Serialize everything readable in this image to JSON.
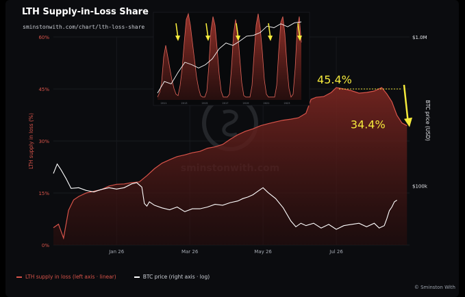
{
  "header": {
    "title": "LTH Supply-in-Loss Share",
    "subtitle": "sminstonwith.com/chart/lth-loss-share"
  },
  "legend": {
    "lth_label": "LTH supply in loss (left axis · linear)",
    "btc_label": "BTC price (right axis · log)"
  },
  "copyright": "© Sminston With",
  "watermark": "sminstonwith.com",
  "colors": {
    "background": "#0b0c0f",
    "lth_line": "#d9544a",
    "lth_fill": "#6e1f1c",
    "btc_line": "#ffffff",
    "highlight": "#f5ea3c",
    "left_axis_text": "#d9544a"
  },
  "chart_data": [
    {
      "type": "area",
      "title": "LTH Supply-in-Loss Share",
      "ylabel": "LTH supply in loss (%)",
      "y2label": "BTC price (USD)",
      "y2scale": "log",
      "ylim": [
        0,
        60
      ],
      "y2lim": [
        40000,
        1000000
      ],
      "yticks": [
        "0%",
        "15%",
        "30%",
        "45%",
        "60%"
      ],
      "y2ticks": [
        "$100k",
        "$1.0M"
      ],
      "y2tick_values": [
        100000,
        1000000
      ],
      "xticks": [
        "Jan 26",
        "Mar 26",
        "May 26",
        "Jul 26"
      ],
      "xtick_days": [
        50,
        108,
        166,
        224
      ],
      "x_range_days": [
        0,
        282
      ],
      "grid": true,
      "legend_position": "bottom-left",
      "annotations": [
        {
          "text": "45.4%",
          "day": 224,
          "value": 45.4
        },
        {
          "text": "34.4%",
          "day": 270,
          "value": 34.4
        }
      ],
      "series": [
        {
          "name": "LTH supply in loss (left axis · linear)",
          "axis": "left",
          "x": [
            0,
            4,
            8,
            12,
            16,
            20,
            26,
            32,
            38,
            44,
            50,
            56,
            62,
            68,
            74,
            80,
            86,
            92,
            98,
            104,
            110,
            116,
            122,
            128,
            134,
            140,
            146,
            152,
            158,
            164,
            170,
            176,
            182,
            188,
            194,
            200,
            204,
            208,
            214,
            220,
            224,
            230,
            236,
            242,
            248,
            254,
            260,
            264,
            268,
            272,
            276,
            280
          ],
          "values": [
            5,
            6,
            2,
            10,
            13,
            14,
            15,
            15.5,
            16,
            17,
            17.5,
            17.6,
            18,
            18.2,
            20,
            22,
            23.6,
            24.6,
            25.5,
            26,
            26.6,
            27,
            27.9,
            28.3,
            29,
            30.5,
            31.8,
            32.8,
            33.5,
            34.4,
            35,
            35.5,
            36,
            36.3,
            36.7,
            38,
            42,
            42.6,
            42.8,
            44,
            45.4,
            45.0,
            44.5,
            43.8,
            44.0,
            44.4,
            45.4,
            43.6,
            41.3,
            37.4,
            35.2,
            34.4
          ]
        },
        {
          "name": "BTC price (right axis · log)",
          "axis": "right",
          "x": [
            0,
            3,
            6,
            10,
            14,
            20,
            26,
            32,
            38,
            44,
            50,
            56,
            62,
            66,
            70,
            72,
            74,
            76,
            80,
            86,
            92,
            98,
            104,
            110,
            116,
            122,
            128,
            134,
            140,
            146,
            150,
            154,
            158,
            162,
            166,
            170,
            176,
            182,
            188,
            192,
            196,
            200,
            206,
            212,
            218,
            224,
            230,
            236,
            242,
            248,
            254,
            258,
            262,
            264,
            266,
            268,
            270,
            272
          ],
          "values": [
            121000,
            140000,
            128000,
            112000,
            96000,
            97000,
            93000,
            91000,
            94500,
            97000,
            95000,
            97000,
            103000,
            105000,
            98000,
            76000,
            73000,
            78000,
            74000,
            71000,
            69000,
            72000,
            67000,
            70000,
            70000,
            72000,
            75000,
            74000,
            77000,
            79000,
            82000,
            84000,
            87000,
            92000,
            97000,
            90000,
            82000,
            71000,
            58000,
            53000,
            56000,
            54000,
            56000,
            52000,
            55000,
            51000,
            54000,
            55000,
            56000,
            53000,
            56000,
            52000,
            54000,
            60000,
            68000,
            72000,
            78000,
            80000
          ]
        }
      ]
    },
    {
      "type": "area",
      "title": "",
      "xticks": [
        "2011",
        "2013",
        "2015",
        "2017",
        "2019",
        "2021",
        "2023"
      ],
      "series": [
        {
          "name": "LTH supply in loss",
          "x": [
            0,
            3,
            6,
            9,
            12,
            15,
            18,
            21,
            24,
            27,
            30,
            33,
            36,
            39,
            42,
            45,
            48,
            51,
            54,
            57,
            60,
            63,
            66,
            69,
            72,
            75,
            78,
            81,
            84,
            87,
            90,
            93,
            96,
            99,
            102,
            105,
            108,
            111,
            114,
            117,
            120,
            123,
            126,
            129,
            132,
            135,
            138,
            141,
            144,
            147,
            150,
            153,
            156,
            159,
            162,
            165,
            168,
            171,
            174,
            177,
            180,
            183,
            186,
            189,
            192,
            195,
            198,
            201,
            204,
            207,
            210
          ],
          "values": [
            2,
            5,
            12,
            30,
            38,
            30,
            22,
            14,
            8,
            4,
            3,
            10,
            22,
            40,
            56,
            60,
            52,
            40,
            28,
            16,
            8,
            3,
            2,
            2,
            6,
            24,
            48,
            58,
            52,
            36,
            18,
            6,
            2,
            2,
            2,
            4,
            22,
            46,
            56,
            48,
            30,
            12,
            3,
            2,
            2,
            2,
            10,
            32,
            52,
            60,
            50,
            34,
            14,
            4,
            2,
            2,
            2,
            2,
            10,
            34,
            54,
            58,
            46,
            24,
            8,
            2,
            4,
            22,
            50,
            58,
            40
          ]
        },
        {
          "name": "BTC price",
          "x": [
            0,
            10,
            20,
            30,
            40,
            50,
            60,
            70,
            80,
            90,
            100,
            110,
            120,
            130,
            140,
            150,
            160,
            170,
            180,
            190,
            200,
            210
          ],
          "values": [
            1,
            4,
            3,
            12,
            40,
            30,
            20,
            30,
            60,
            200,
            400,
            300,
            500,
            900,
            1000,
            1400,
            3000,
            2500,
            4000,
            2800,
            4500,
            5000
          ]
        }
      ],
      "arrows_at_days": [
        30,
        74,
        118,
        165,
        208
      ]
    }
  ]
}
